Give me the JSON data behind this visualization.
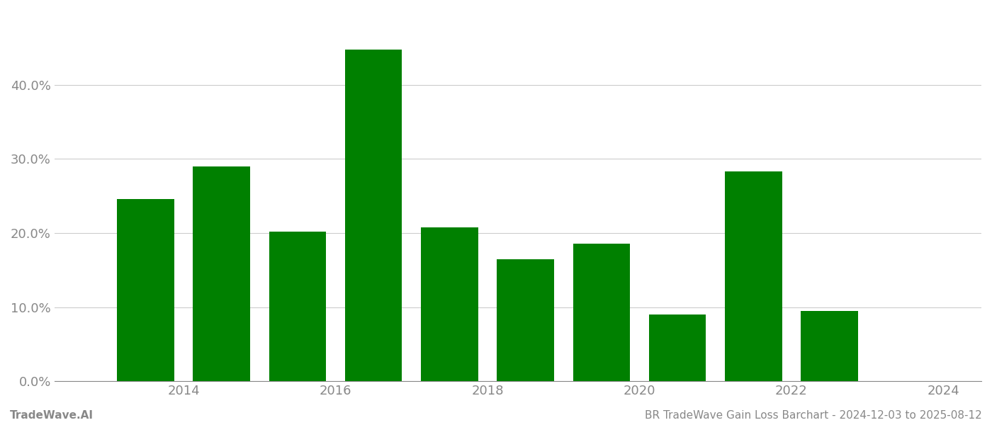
{
  "years": [
    2013,
    2014,
    2015,
    2016,
    2017,
    2018,
    2019,
    2020,
    2021,
    2022,
    2023
  ],
  "values": [
    0.246,
    0.29,
    0.202,
    0.447,
    0.208,
    0.165,
    0.186,
    0.09,
    0.283,
    0.095,
    0.0
  ],
  "bar_color": "#008000",
  "background_color": "#ffffff",
  "ylim": [
    0,
    0.5
  ],
  "yticks": [
    0.0,
    0.1,
    0.2,
    0.3,
    0.4
  ],
  "grid_color": "#cccccc",
  "tick_color": "#888888",
  "xtick_positions": [
    2014,
    2016,
    2018,
    2020,
    2022,
    2024
  ],
  "xtick_labels": [
    "2014",
    "2016",
    "2018",
    "2020",
    "2022",
    "2024"
  ],
  "xlim": [
    2012.3,
    2024.5
  ],
  "footer_left": "TradeWave.AI",
  "footer_right": "BR TradeWave Gain Loss Barchart - 2024-12-03 to 2025-08-12",
  "footer_fontsize": 11,
  "bar_width": 0.75,
  "figsize": [
    14.0,
    6.0
  ],
  "dpi": 100,
  "tick_labelsize": 13
}
